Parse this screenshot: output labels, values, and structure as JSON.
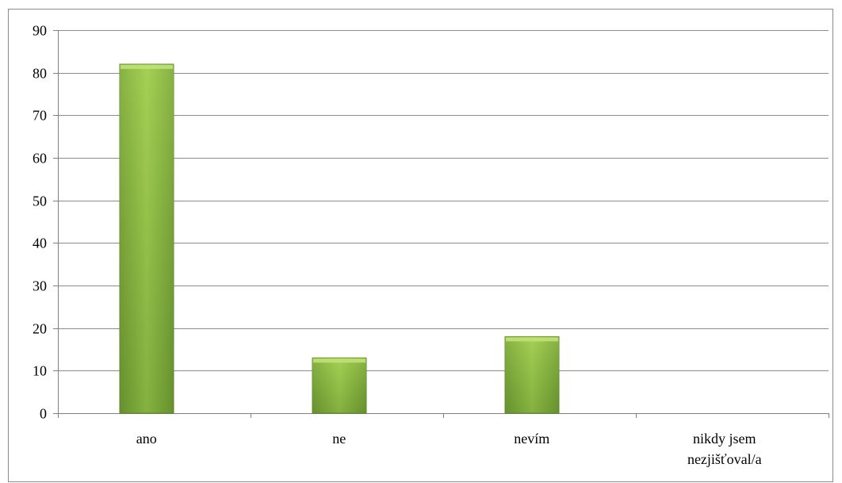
{
  "chart_data": {
    "type": "bar",
    "title": "",
    "xlabel": "",
    "ylabel": "",
    "categories": [
      "ano",
      "ne",
      "nevím",
      "nikdy jsem nezjišťoval/a"
    ],
    "category_lines": [
      [
        "ano"
      ],
      [
        "ne"
      ],
      [
        "nevím"
      ],
      [
        "nikdy jsem",
        "nezjišťoval/a"
      ]
    ],
    "values": [
      82,
      13,
      18,
      0
    ],
    "ylim": [
      0,
      90
    ],
    "yticks": [
      0,
      10,
      20,
      30,
      40,
      50,
      60,
      70,
      80,
      90
    ],
    "grid": true,
    "legend": "none",
    "colors": {
      "bar_light": "#9bc94c",
      "bar_mid": "#7aa63a",
      "bar_dark": "#5f8a2d",
      "grid": "#8c8c8c",
      "axis": "#808080"
    }
  }
}
